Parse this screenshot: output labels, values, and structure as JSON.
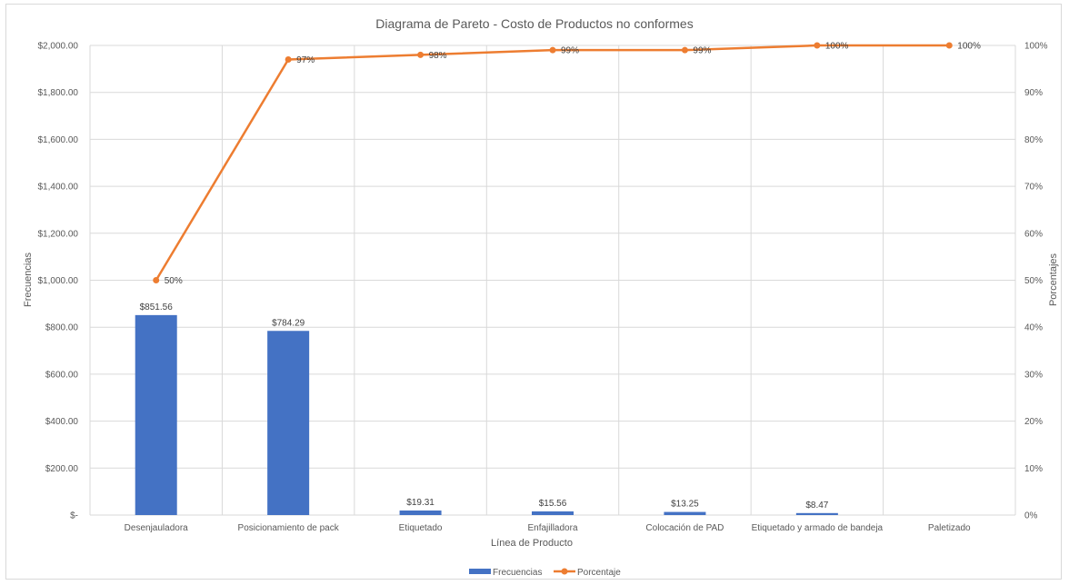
{
  "chart_data": {
    "type": "bar",
    "title": "Diagrama de Pareto - Costo de Productos no conformes",
    "xlabel": "Línea de Producto",
    "ylabel": "Frecuencias",
    "y2label": "Porcentajes",
    "categories": [
      "Desenjauladora",
      "Posicionamiento de pack",
      "Etiquetado",
      "Enfajilladora",
      "Colocación de PAD",
      "Etiquetado y armado de bandeja",
      "Paletizado"
    ],
    "ylim": [
      0,
      2000
    ],
    "y_ticks": [
      "$-",
      "$200.00",
      "$400.00",
      "$600.00",
      "$800.00",
      "$1,000.00",
      "$1,200.00",
      "$1,400.00",
      "$1,600.00",
      "$1,800.00",
      "$2,000.00"
    ],
    "y2lim": [
      0,
      100
    ],
    "y2_ticks": [
      "0%",
      "10%",
      "20%",
      "30%",
      "40%",
      "50%",
      "60%",
      "70%",
      "80%",
      "90%",
      "100%"
    ],
    "series": [
      {
        "name": "Frecuencias",
        "kind": "bar",
        "color": "#4472C4",
        "values": [
          851.56,
          784.29,
          19.31,
          15.56,
          13.25,
          8.47,
          0
        ],
        "labels": [
          "$851.56",
          "$784.29",
          "$19.31",
          "$15.56",
          "$13.25",
          "$8.47",
          ""
        ]
      },
      {
        "name": "Porcentaje",
        "kind": "line",
        "axis": "secondary",
        "color": "#ED7D31",
        "values": [
          50,
          97,
          98,
          99,
          99,
          100,
          100
        ],
        "labels": [
          "50%",
          "97%",
          "98%",
          "99%",
          "99%",
          "100%",
          "100%"
        ]
      }
    ],
    "grid": true,
    "legend": "bottom"
  }
}
